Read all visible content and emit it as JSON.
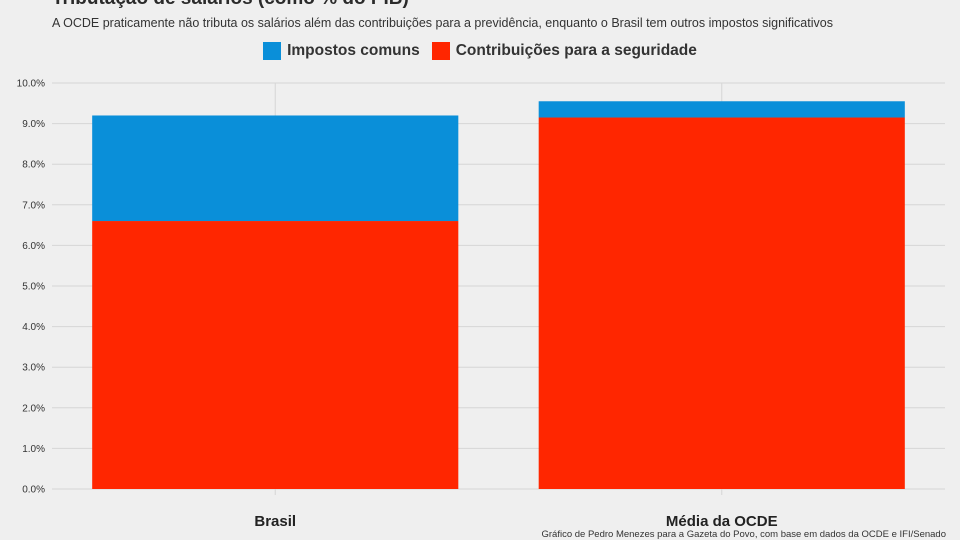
{
  "header": {
    "title": "Tributação de salários (como % do PIB)",
    "subtitle": "A OCDE praticamente não tributa os salários além das contribuições para a previdência, enquanto o Brasil tem outros impostos significativos"
  },
  "footer": {
    "caption": "Gráfico de Pedro Menezes para a Gazeta do Povo, com base em dados da OCDE e IFI/Senado"
  },
  "colors": {
    "impostos": "#0a8fd9",
    "contribuicoes": "#ff2600",
    "grid": "#d6d6d6",
    "background": "#efefef"
  },
  "chart_data": {
    "type": "bar",
    "stacked": true,
    "title": "Tributação de salários (como % do PIB)",
    "subtitle": "A OCDE praticamente não tributa os salários além das contribuições para a previdência, enquanto o Brasil tem outros impostos significativos",
    "categories": [
      "Brasil",
      "Média da OCDE"
    ],
    "series": [
      {
        "name": "Contribuições para a seguridade",
        "values": [
          6.6,
          9.15
        ]
      },
      {
        "name": "Impostos comuns",
        "values": [
          2.6,
          0.4
        ]
      }
    ],
    "legend_order": [
      "Impostos comuns",
      "Contribuições para a seguridade"
    ],
    "y_ticks": [
      "0.0%",
      "1.0%",
      "2.0%",
      "3.0%",
      "4.0%",
      "5.0%",
      "6.0%",
      "7.0%",
      "8.0%",
      "9.0%",
      "10.0%"
    ],
    "ylim": [
      0,
      10
    ],
    "xlabel": "",
    "ylabel": "",
    "grid": true,
    "legend_position": "top"
  }
}
